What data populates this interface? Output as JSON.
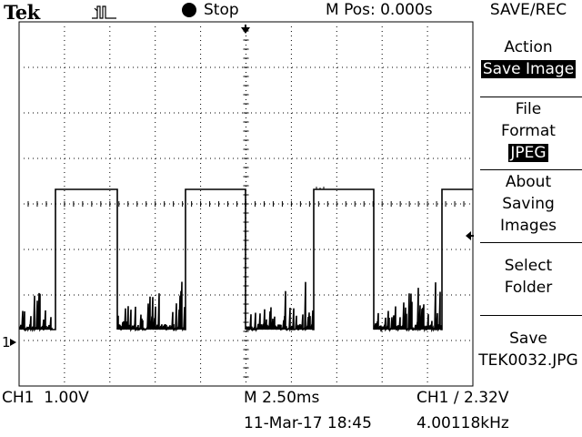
{
  "header": {
    "brand": "Tek",
    "trigger_icon": "pulse-trigger-icon",
    "run_state": "Stop",
    "m_pos": "M Pos: 0.000s",
    "menu_title": "SAVE/REC"
  },
  "menu": {
    "action_label": "Action",
    "action_value": "Save Image",
    "format_label_1": "File",
    "format_label_2": "Format",
    "format_value": "JPEG",
    "about_1": "About",
    "about_2": "Saving",
    "about_3": "Images",
    "select_1": "Select",
    "select_2": "Folder",
    "save_1": "Save",
    "save_2": "TEK0032.JPG"
  },
  "markers": {
    "ch1_ground": "1"
  },
  "status": {
    "ch1_scale": "CH1  1.00V",
    "timebase": "M 2.50ms",
    "trigger": "CH1 ∕ 2.32V",
    "datetime": "11-Mar-17 18:45",
    "frequency": "4.00118kHz"
  },
  "colors": {
    "background": "#ffffff",
    "trace": "#000000"
  }
}
